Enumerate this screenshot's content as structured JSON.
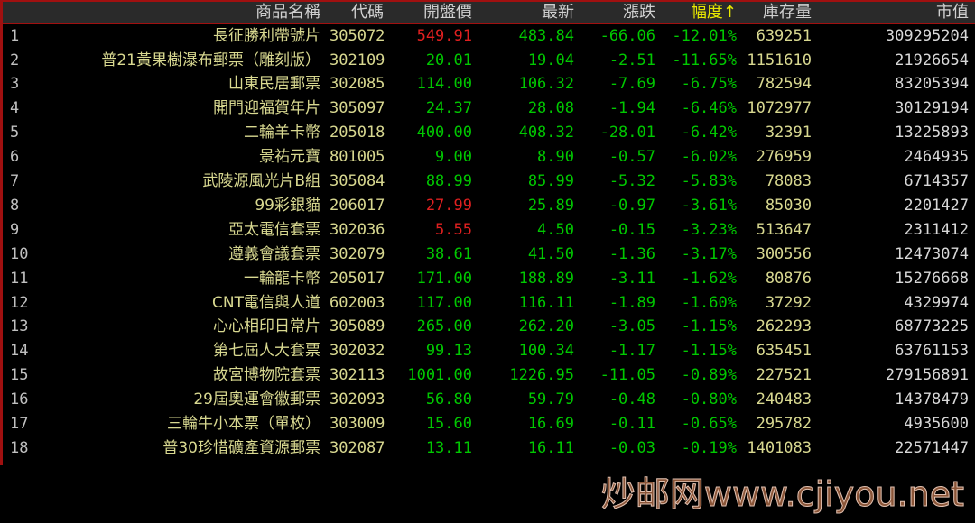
{
  "colors": {
    "up": "#e02020",
    "down": "#00c800",
    "sorted_header": "#e8e800",
    "border": "#a01010"
  },
  "header": {
    "name": "商品名稱",
    "code": "代碼",
    "open": "開盤價",
    "last": "最新",
    "change": "漲跌",
    "pct": "幅度↑",
    "stock": "庫存量",
    "market_value": "市值"
  },
  "rows": [
    {
      "no": "1",
      "name": "長征勝利帶號片",
      "code": "305072",
      "open": "549.91",
      "open_dir": "up",
      "last": "483.84",
      "change": "-66.06",
      "pct": "-12.01%",
      "stock": "639251",
      "mv": "309295204"
    },
    {
      "no": "2",
      "name": "普21黃果樹瀑布郵票（雕刻版）",
      "code": "302109",
      "open": "20.01",
      "open_dir": "down",
      "last": "19.04",
      "change": "-2.51",
      "pct": "-11.65%",
      "stock": "1151610",
      "mv": "21926654"
    },
    {
      "no": "3",
      "name": "山東民居郵票",
      "code": "302085",
      "open": "114.00",
      "open_dir": "down",
      "last": "106.32",
      "change": "-7.69",
      "pct": "-6.75%",
      "stock": "782594",
      "mv": "83205394"
    },
    {
      "no": "4",
      "name": "開門迎福賀年片",
      "code": "305097",
      "open": "24.37",
      "open_dir": "down",
      "last": "28.08",
      "change": "-1.94",
      "pct": "-6.46%",
      "stock": "1072977",
      "mv": "30129194"
    },
    {
      "no": "5",
      "name": "二輪羊卡幣",
      "code": "205018",
      "open": "400.00",
      "open_dir": "down",
      "last": "408.32",
      "change": "-28.01",
      "pct": "-6.42%",
      "stock": "32391",
      "mv": "13225893"
    },
    {
      "no": "6",
      "name": "景祐元寶",
      "code": "801005",
      "open": "9.00",
      "open_dir": "down",
      "last": "8.90",
      "change": "-0.57",
      "pct": "-6.02%",
      "stock": "276959",
      "mv": "2464935"
    },
    {
      "no": "7",
      "name": "武陵源風光片B組",
      "code": "305084",
      "open": "88.99",
      "open_dir": "down",
      "last": "85.99",
      "change": "-5.32",
      "pct": "-5.83%",
      "stock": "78083",
      "mv": "6714357"
    },
    {
      "no": "8",
      "name": "99彩銀貓",
      "code": "206017",
      "open": "27.99",
      "open_dir": "up",
      "last": "25.89",
      "change": "-0.97",
      "pct": "-3.61%",
      "stock": "85030",
      "mv": "2201427"
    },
    {
      "no": "9",
      "name": "亞太電信套票",
      "code": "302036",
      "open": "5.55",
      "open_dir": "up",
      "last": "4.50",
      "change": "-0.15",
      "pct": "-3.23%",
      "stock": "513647",
      "mv": "2311412"
    },
    {
      "no": "10",
      "name": "遵義會議套票",
      "code": "302079",
      "open": "38.61",
      "open_dir": "down",
      "last": "41.50",
      "change": "-1.36",
      "pct": "-3.17%",
      "stock": "300556",
      "mv": "12473074"
    },
    {
      "no": "11",
      "name": "一輪龍卡幣",
      "code": "205017",
      "open": "171.00",
      "open_dir": "down",
      "last": "188.89",
      "change": "-3.11",
      "pct": "-1.62%",
      "stock": "80876",
      "mv": "15276668"
    },
    {
      "no": "12",
      "name": "CNT電信與人道",
      "code": "602003",
      "open": "117.00",
      "open_dir": "down",
      "last": "116.11",
      "change": "-1.89",
      "pct": "-1.60%",
      "stock": "37292",
      "mv": "4329974"
    },
    {
      "no": "13",
      "name": "心心相印日常片",
      "code": "305089",
      "open": "265.00",
      "open_dir": "down",
      "last": "262.20",
      "change": "-3.05",
      "pct": "-1.15%",
      "stock": "262293",
      "mv": "68773225"
    },
    {
      "no": "14",
      "name": "第七屆人大套票",
      "code": "302032",
      "open": "99.13",
      "open_dir": "down",
      "last": "100.34",
      "change": "-1.17",
      "pct": "-1.15%",
      "stock": "635451",
      "mv": "63761153"
    },
    {
      "no": "15",
      "name": "故宮博物院套票",
      "code": "302113",
      "open": "1001.00",
      "open_dir": "down",
      "last": "1226.95",
      "change": "-11.05",
      "pct": "-0.89%",
      "stock": "227521",
      "mv": "279156891"
    },
    {
      "no": "16",
      "name": "29屆奧運會徽郵票",
      "code": "302093",
      "open": "56.80",
      "open_dir": "down",
      "last": "59.79",
      "change": "-0.48",
      "pct": "-0.80%",
      "stock": "240483",
      "mv": "14378479"
    },
    {
      "no": "17",
      "name": "三輪牛小本票（單枚）",
      "code": "303009",
      "open": "15.60",
      "open_dir": "down",
      "last": "16.69",
      "change": "-0.11",
      "pct": "-0.65%",
      "stock": "295782",
      "mv": "4935600"
    },
    {
      "no": "18",
      "name": "普30珍惜礦產資源郵票",
      "code": "302087",
      "open": "13.11",
      "open_dir": "down",
      "last": "16.11",
      "change": "-0.03",
      "pct": "-0.19%",
      "stock": "1401083",
      "mv": "22571447"
    }
  ],
  "watermark": "炒邮网www.cjiyou.net"
}
